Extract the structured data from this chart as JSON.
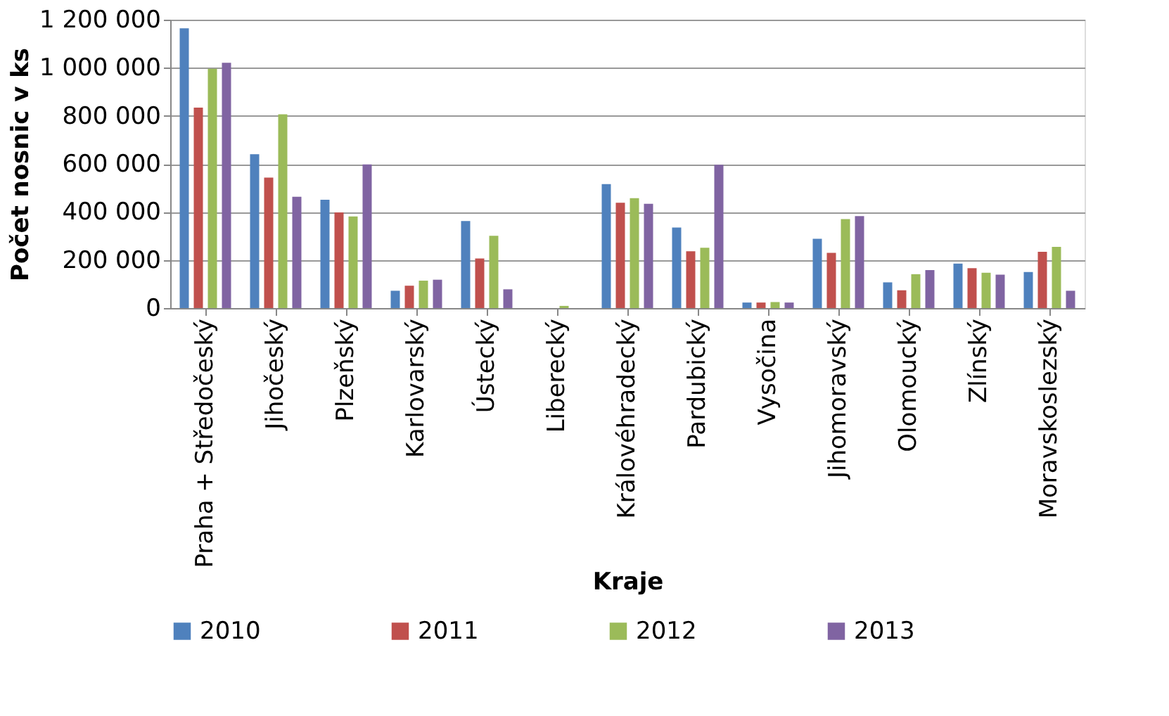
{
  "chart_data": {
    "type": "bar",
    "xlabel": "Kraje",
    "ylabel": "Počet nosnic v ks",
    "categories": [
      "Praha + Středočeský",
      "Jihočeský",
      "Plzeňský",
      "Karlovarský",
      "Ústecký",
      "Liberecký",
      "Královéhradecký",
      "Pardubický",
      "Vysočina",
      "Jihomoravský",
      "Olomoucký",
      "Zlínský",
      "Moravskoslezský"
    ],
    "series": [
      {
        "name": "2010",
        "color": "#4f81bd",
        "values": [
          1164000,
          640000,
          451000,
          72000,
          362000,
          null,
          516000,
          335000,
          23000,
          288000,
          107000,
          185000,
          150000
        ]
      },
      {
        "name": "2011",
        "color": "#c0504d",
        "values": [
          834000,
          543000,
          398000,
          93000,
          206000,
          null,
          438000,
          236000,
          23000,
          230000,
          74000,
          166000,
          234000
        ]
      },
      {
        "name": "2012",
        "color": "#9bbb59",
        "values": [
          996000,
          806000,
          381000,
          114000,
          301000,
          9000,
          457000,
          251000,
          25000,
          370000,
          141000,
          147000,
          255000
        ]
      },
      {
        "name": "2013",
        "color": "#8064a2",
        "values": [
          1021000,
          463000,
          598000,
          118000,
          78000,
          null,
          434000,
          596000,
          23000,
          383000,
          158000,
          139000,
          72000
        ]
      }
    ],
    "ylim": [
      0,
      1200000
    ],
    "yticks": [
      {
        "value": 0,
        "label": "0"
      },
      {
        "value": 200000,
        "label": "200 000"
      },
      {
        "value": 400000,
        "label": "400 000"
      },
      {
        "value": 600000,
        "label": "600 000"
      },
      {
        "value": 800000,
        "label": "800 000"
      },
      {
        "value": 1000000,
        "label": "1 000 000"
      },
      {
        "value": 1200000,
        "label": "1 200 000"
      }
    ],
    "grid": "y",
    "legend": "bottom"
  }
}
